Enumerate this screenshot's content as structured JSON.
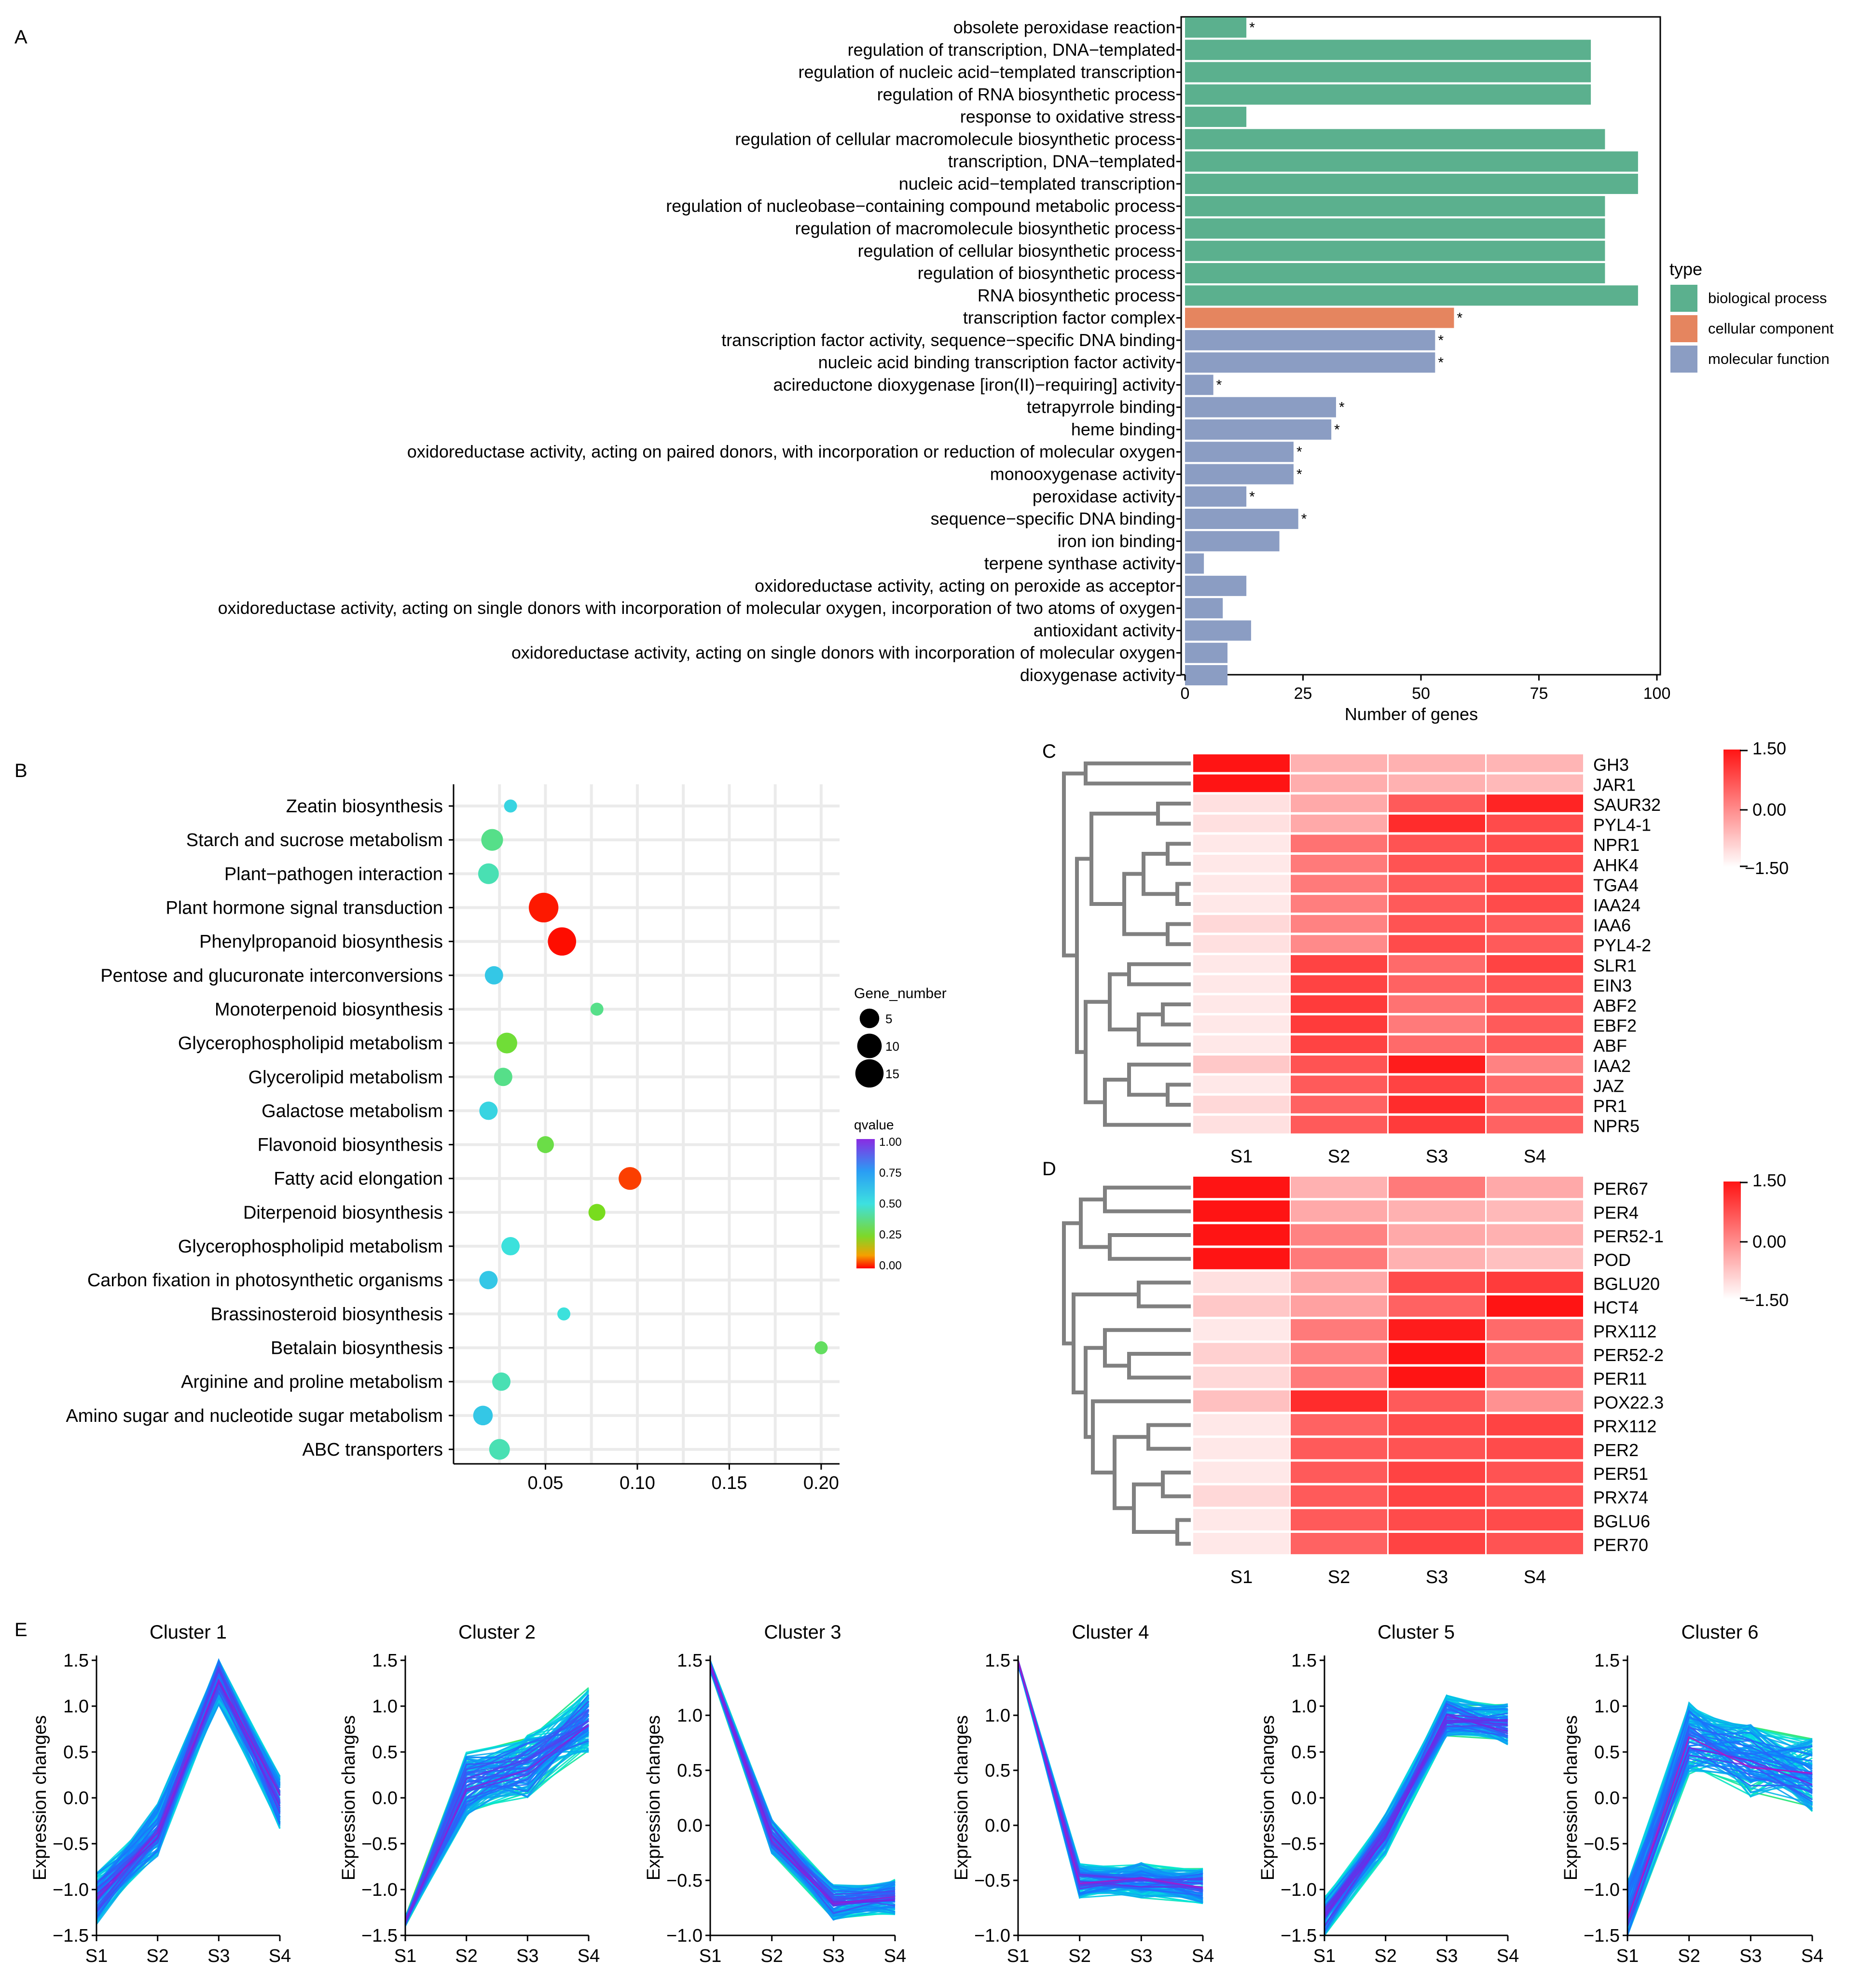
{
  "chart_data": [
    {
      "panel": "A",
      "type": "bar",
      "orientation": "horizontal",
      "xlabel": "Number of genes",
      "xlim": [
        0,
        100
      ],
      "xticks": [
        0,
        25,
        50,
        75,
        100
      ],
      "legend": {
        "title": "type",
        "position": "right",
        "entries": [
          {
            "label": "biological process",
            "color": "#5bb08e"
          },
          {
            "label": "cellular component",
            "color": "#e5855f"
          },
          {
            "label": "molecular function",
            "color": "#8b9dc3"
          }
        ]
      },
      "categories": [
        "obsolete peroxidase reaction",
        "regulation of transcription, DNA−templated",
        "regulation of nucleic acid−templated transcription",
        "regulation of RNA biosynthetic process",
        "response to oxidative stress",
        "regulation of cellular macromolecule biosynthetic process",
        "transcription, DNA−templated",
        "nucleic acid−templated transcription",
        "regulation of nucleobase−containing compound metabolic process",
        "regulation of macromolecule biosynthetic process",
        "regulation of cellular biosynthetic process",
        "regulation of biosynthetic process",
        "RNA biosynthetic process",
        "transcription factor complex",
        "transcription factor activity, sequence−specific DNA binding",
        "nucleic acid binding transcription factor activity",
        "acireductone dioxygenase [iron(II)−requiring] activity",
        "tetrapyrrole binding",
        "heme binding",
        "oxidoreductase activity, acting on paired donors, with incorporation or reduction of molecular oxygen",
        "monooxygenase activity",
        "peroxidase activity",
        "sequence−specific DNA binding",
        "iron ion binding",
        "terpene synthase activity",
        "oxidoreductase activity, acting on peroxide as acceptor",
        "oxidoreductase activity, acting on single donors with incorporation of molecular oxygen, incorporation of two atoms of oxygen",
        "antioxidant activity",
        "oxidoreductase activity, acting on single donors with incorporation of molecular oxygen",
        "dioxygenase activity"
      ],
      "values": [
        13,
        86,
        86,
        86,
        13,
        89,
        96,
        96,
        89,
        89,
        89,
        89,
        96,
        57,
        53,
        53,
        6,
        32,
        31,
        23,
        23,
        13,
        24,
        20,
        4,
        13,
        8,
        14,
        9,
        9
      ],
      "types": [
        "bp",
        "bp",
        "bp",
        "bp",
        "bp",
        "bp",
        "bp",
        "bp",
        "bp",
        "bp",
        "bp",
        "bp",
        "bp",
        "cc",
        "mf",
        "mf",
        "mf",
        "mf",
        "mf",
        "mf",
        "mf",
        "mf",
        "mf",
        "mf",
        "mf",
        "mf",
        "mf",
        "mf",
        "mf",
        "mf"
      ],
      "significant": [
        1,
        0,
        0,
        0,
        0,
        0,
        0,
        0,
        0,
        0,
        0,
        0,
        0,
        1,
        1,
        1,
        1,
        1,
        1,
        1,
        1,
        1,
        1,
        0,
        0,
        0,
        0,
        0,
        0,
        0
      ],
      "sig_marker": "*"
    },
    {
      "panel": "B",
      "type": "scatter",
      "xlim": [
        0,
        0.21
      ],
      "xticks": [
        0.05,
        0.1,
        0.15,
        0.2
      ],
      "xtick_labels": [
        "0.05",
        "0.10",
        "0.15",
        "0.20"
      ],
      "size_legend": {
        "title": "Gene_number",
        "values": [
          5,
          10,
          15
        ],
        "labels": [
          "5",
          "10",
          "15"
        ]
      },
      "color_legend": {
        "title": "qvalue",
        "ticks": [
          "1.00",
          "0.75",
          "0.50",
          "0.25",
          "0.00"
        ]
      },
      "pathways": [
        {
          "name": "Zeatin biosynthesis",
          "x": 0.031,
          "gene_number": 1,
          "qvalue": 0.55
        },
        {
          "name": "Starch and sucrose metabolism",
          "x": 0.021,
          "gene_number": 7,
          "qvalue": 0.4
        },
        {
          "name": "Plant−pathogen interaction",
          "x": 0.019,
          "gene_number": 6,
          "qvalue": 0.45
        },
        {
          "name": "Plant hormone signal transduction",
          "x": 0.049,
          "gene_number": 17,
          "qvalue": 0.02
        },
        {
          "name": "Phenylpropanoid biosynthesis",
          "x": 0.059,
          "gene_number": 15,
          "qvalue": 0.01
        },
        {
          "name": "Pentose and glucuronate interconversions",
          "x": 0.022,
          "gene_number": 4,
          "qvalue": 0.6
        },
        {
          "name": "Monoterpenoid biosynthesis",
          "x": 0.078,
          "gene_number": 1,
          "qvalue": 0.4
        },
        {
          "name": "Glycerophospholipid metabolism",
          "x": 0.029,
          "gene_number": 6,
          "qvalue": 0.3
        },
        {
          "name": "Glycerolipid metabolism",
          "x": 0.027,
          "gene_number": 4,
          "qvalue": 0.4
        },
        {
          "name": "Galactose metabolism",
          "x": 0.019,
          "gene_number": 4,
          "qvalue": 0.55
        },
        {
          "name": "Flavonoid biosynthesis",
          "x": 0.05,
          "gene_number": 3,
          "qvalue": 0.32
        },
        {
          "name": "Fatty acid elongation",
          "x": 0.096,
          "gene_number": 8,
          "qvalue": 0.05
        },
        {
          "name": "Diterpenoid biosynthesis",
          "x": 0.078,
          "gene_number": 3,
          "qvalue": 0.27
        },
        {
          "name": "Glycerophospholipid metabolism",
          "x": 0.031,
          "gene_number": 4,
          "qvalue": 0.5
        },
        {
          "name": "Carbon fixation in photosynthetic organisms",
          "x": 0.019,
          "gene_number": 4,
          "qvalue": 0.6
        },
        {
          "name": "Brassinosteroid biosynthesis",
          "x": 0.06,
          "gene_number": 1,
          "qvalue": 0.5
        },
        {
          "name": "Betalain biosynthesis",
          "x": 0.2,
          "gene_number": 1,
          "qvalue": 0.35
        },
        {
          "name": "Arginine and proline metabolism",
          "x": 0.026,
          "gene_number": 4,
          "qvalue": 0.45
        },
        {
          "name": "Amino sugar and nucleotide sugar metabolism",
          "x": 0.016,
          "gene_number": 5,
          "qvalue": 0.6
        },
        {
          "name": "ABC transporters",
          "x": 0.025,
          "gene_number": 6,
          "qvalue": 0.45
        }
      ]
    },
    {
      "panel": "C",
      "type": "heatmap",
      "columns": [
        "S1",
        "S2",
        "S3",
        "S4"
      ],
      "scale": {
        "max_label": "1.50",
        "mid_label": "0.00",
        "min_label": "−1.50",
        "range": [
          -1.5,
          1.5
        ]
      },
      "rows": [
        {
          "gene": "GH3",
          "values": [
            1.5,
            -0.5,
            -0.5,
            -0.55
          ]
        },
        {
          "gene": "JAR1",
          "values": [
            1.5,
            -0.45,
            -0.5,
            -0.6
          ]
        },
        {
          "gene": "SAUR32",
          "values": [
            -1.1,
            -0.4,
            0.6,
            1.3
          ]
        },
        {
          "gene": "PYL4-1",
          "values": [
            -1.1,
            -0.4,
            1.2,
            0.8
          ]
        },
        {
          "gene": "NPR1",
          "values": [
            -1.2,
            0.3,
            0.7,
            0.8
          ]
        },
        {
          "gene": "AHK4",
          "values": [
            -1.2,
            0.2,
            0.7,
            0.8
          ]
        },
        {
          "gene": "TGA4",
          "values": [
            -1.2,
            0.2,
            0.6,
            0.8
          ]
        },
        {
          "gene": "IAA24",
          "values": [
            -1.2,
            0.15,
            0.6,
            0.8
          ]
        },
        {
          "gene": "IAA6",
          "values": [
            -1.0,
            0.1,
            0.7,
            0.6
          ]
        },
        {
          "gene": "PYL4-2",
          "values": [
            -1.1,
            0.0,
            0.8,
            0.6
          ]
        },
        {
          "gene": "SLR1",
          "values": [
            -1.2,
            0.9,
            0.4,
            0.9
          ]
        },
        {
          "gene": "EIN3",
          "values": [
            -1.2,
            0.9,
            0.5,
            0.7
          ]
        },
        {
          "gene": "ABF2",
          "values": [
            -1.2,
            1.0,
            0.3,
            0.6
          ]
        },
        {
          "gene": "EBF2",
          "values": [
            -1.2,
            1.0,
            0.2,
            0.6
          ]
        },
        {
          "gene": "ABF",
          "values": [
            -1.2,
            0.9,
            0.4,
            0.6
          ]
        },
        {
          "gene": "IAA2",
          "values": [
            -0.8,
            0.7,
            1.4,
            0.1
          ]
        },
        {
          "gene": "JAZ",
          "values": [
            -1.2,
            0.6,
            0.9,
            0.4
          ]
        },
        {
          "gene": "PR1",
          "values": [
            -1.0,
            0.5,
            1.2,
            0.5
          ]
        },
        {
          "gene": "NPR5",
          "values": [
            -1.1,
            0.6,
            1.0,
            0.5
          ]
        }
      ]
    },
    {
      "panel": "D",
      "type": "heatmap",
      "columns": [
        "S1",
        "S2",
        "S3",
        "S4"
      ],
      "scale": {
        "max_label": "1.50",
        "mid_label": "0.00",
        "min_label": "−1.50",
        "range": [
          -1.5,
          1.5
        ]
      },
      "rows": [
        {
          "gene": "PER67",
          "values": [
            1.5,
            -0.5,
            0.2,
            -0.4
          ]
        },
        {
          "gene": "PER4",
          "values": [
            1.5,
            -0.4,
            -0.5,
            -0.6
          ]
        },
        {
          "gene": "PER52-1",
          "values": [
            1.5,
            0.1,
            -0.4,
            -0.5
          ]
        },
        {
          "gene": "POD",
          "values": [
            1.5,
            0.2,
            -0.5,
            -0.7
          ]
        },
        {
          "gene": "BGLU20",
          "values": [
            -1.1,
            -0.4,
            0.8,
            1.0
          ]
        },
        {
          "gene": "HCT4",
          "values": [
            -0.8,
            -0.3,
            0.5,
            1.5
          ]
        },
        {
          "gene": "PRX112",
          "values": [
            -1.2,
            0.2,
            1.4,
            0.4
          ]
        },
        {
          "gene": "PER52-2",
          "values": [
            -0.9,
            0.1,
            1.5,
            0.3
          ]
        },
        {
          "gene": "PER11",
          "values": [
            -1.0,
            0.2,
            1.5,
            0.4
          ]
        },
        {
          "gene": "POX22.3",
          "values": [
            -0.7,
            1.2,
            0.6,
            -0.1
          ]
        },
        {
          "gene": "PRX112",
          "values": [
            -1.2,
            0.5,
            0.8,
            0.9
          ]
        },
        {
          "gene": "PER2",
          "values": [
            -1.2,
            0.6,
            0.7,
            0.8
          ]
        },
        {
          "gene": "PER51",
          "values": [
            -1.2,
            0.6,
            0.9,
            0.7
          ]
        },
        {
          "gene": "PRX74",
          "values": [
            -1.0,
            0.6,
            0.9,
            0.7
          ]
        },
        {
          "gene": "BGLU6",
          "values": [
            -1.2,
            0.6,
            0.8,
            0.8
          ]
        },
        {
          "gene": "PER70",
          "values": [
            -1.2,
            0.5,
            0.9,
            0.7
          ]
        }
      ]
    },
    {
      "panel": "E",
      "type": "line",
      "ylabel": "Expression changes",
      "x": [
        "S1",
        "S2",
        "S3",
        "S4"
      ],
      "clusters": [
        {
          "title": "Cluster 1",
          "ylim": [
            -1.5,
            1.5
          ],
          "yticks": [
            "−1.5",
            "−1.0",
            "−0.5",
            "0.0",
            "0.5",
            "1.0",
            "1.5"
          ],
          "center": [
            -1.1,
            -0.35,
            1.3,
            -0.05
          ],
          "spread": 0.18
        },
        {
          "title": "Cluster 2",
          "ylim": [
            -1.5,
            1.5
          ],
          "yticks": [
            "−1.5",
            "−1.0",
            "−0.5",
            "0.0",
            "0.5",
            "1.0",
            "1.5"
          ],
          "center": [
            -1.35,
            0.15,
            0.35,
            0.85
          ],
          "spread": 0.22
        },
        {
          "title": "Cluster 3",
          "ylim": [
            -1.0,
            1.5
          ],
          "yticks": [
            "−1.0",
            "−0.5",
            "0.0",
            "0.5",
            "1.0",
            "1.5"
          ],
          "center": [
            1.45,
            -0.1,
            -0.7,
            -0.65
          ],
          "spread": 0.1
        },
        {
          "title": "Cluster 4",
          "ylim": [
            -1.0,
            1.5
          ],
          "yticks": [
            "−1.0",
            "−0.5",
            "0.0",
            "0.5",
            "1.0",
            "1.5"
          ],
          "center": [
            1.5,
            -0.5,
            -0.5,
            -0.55
          ],
          "spread": 0.1
        },
        {
          "title": "Cluster 5",
          "ylim": [
            -1.5,
            1.5
          ],
          "yticks": [
            "−1.5",
            "−1.0",
            "−0.5",
            "0.0",
            "0.5",
            "1.0",
            "1.5"
          ],
          "center": [
            -1.3,
            -0.4,
            0.9,
            0.8
          ],
          "spread": 0.14
        },
        {
          "title": "Cluster 6",
          "ylim": [
            -1.5,
            1.5
          ],
          "yticks": [
            "−1.5",
            "−1.0",
            "−0.5",
            "0.0",
            "0.5",
            "1.0",
            "1.5"
          ],
          "center": [
            -1.3,
            0.65,
            0.4,
            0.25
          ],
          "spread": 0.25
        }
      ]
    }
  ],
  "panel_labels": [
    "A",
    "B",
    "C",
    "D",
    "E"
  ]
}
